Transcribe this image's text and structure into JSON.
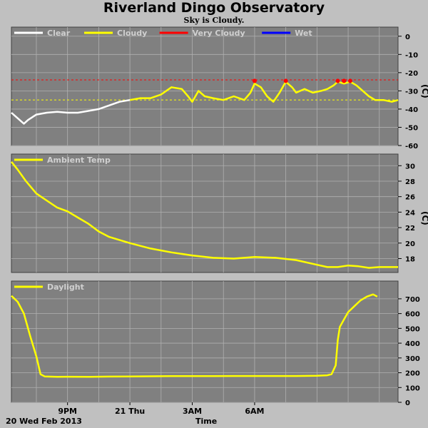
{
  "title": "Riverland Dingo Observatory",
  "subtitle": "Sky is Cloudy.",
  "footer": {
    "date": "20 Wed Feb 2013",
    "xlabel": "Time"
  },
  "colors": {
    "background": "#c0c0c0",
    "plot": "#808080",
    "clear": "#ffffff",
    "cloudy": "#ffff00",
    "very_cloudy": "#ff0000",
    "wet": "#0000ff"
  },
  "chart_data": [
    {
      "type": "line",
      "panel": "sky",
      "unit": "(C)",
      "legend": [
        {
          "name": "Clear",
          "color": "#ffffff"
        },
        {
          "name": "Cloudy",
          "color": "#ffff00"
        },
        {
          "name": "Very Cloudy",
          "color": "#ff0000"
        },
        {
          "name": "Wet",
          "color": "#0000ff"
        }
      ],
      "ylim": [
        -60,
        5
      ],
      "yticks": [
        0,
        -10,
        -20,
        -30,
        -40,
        -50,
        -60
      ],
      "thresholds": [
        {
          "value": -24,
          "color": "#ff0000"
        },
        {
          "value": -35,
          "color": "#ffff00"
        }
      ],
      "series": [
        {
          "name": "Clear",
          "color": "#ffffff",
          "points": [
            [
              18.3,
              -42
            ],
            [
              18.6,
              -45
            ],
            [
              18.9,
              -48
            ],
            [
              19.1,
              -46
            ],
            [
              19.5,
              -43
            ],
            [
              20,
              -42
            ],
            [
              20.5,
              -41.5
            ],
            [
              21,
              -42
            ],
            [
              21.5,
              -42
            ],
            [
              22,
              -41
            ],
            [
              22.5,
              -40
            ],
            [
              23,
              -38
            ],
            [
              23.5,
              -36
            ],
            [
              24,
              -35
            ]
          ]
        },
        {
          "name": "Cloudy",
          "color": "#ffff00",
          "points": [
            [
              24,
              -35
            ],
            [
              24.5,
              -34
            ],
            [
              25,
              -34
            ],
            [
              25.5,
              -32
            ],
            [
              26,
              -28
            ],
            [
              26.5,
              -29
            ],
            [
              26.8,
              -33
            ],
            [
              27,
              -36
            ],
            [
              27.3,
              -30
            ],
            [
              27.6,
              -33
            ],
            [
              28,
              -34
            ],
            [
              28.5,
              -35
            ],
            [
              29,
              -33
            ],
            [
              29.5,
              -35
            ],
            [
              29.8,
              -31
            ],
            [
              30,
              -26
            ],
            [
              30.3,
              -28
            ],
            [
              30.6,
              -33
            ],
            [
              30.9,
              -36
            ],
            [
              31.2,
              -31
            ],
            [
              31.5,
              -25
            ],
            [
              31.8,
              -28
            ],
            [
              32,
              -31
            ],
            [
              32.4,
              -29
            ],
            [
              32.8,
              -31
            ],
            [
              33.2,
              -30
            ],
            [
              33.5,
              -29
            ],
            [
              33.8,
              -27
            ],
            [
              34,
              -25
            ],
            [
              34.3,
              -26
            ],
            [
              34.6,
              -25
            ],
            [
              34.9,
              -27
            ],
            [
              35.2,
              -30
            ],
            [
              35.5,
              -33
            ],
            [
              35.8,
              -35
            ],
            [
              36.2,
              -35
            ],
            [
              36.6,
              -36
            ],
            [
              36.9,
              -35
            ]
          ]
        },
        {
          "name": "Very Cloudy",
          "color": "#ff0000",
          "points": [
            [
              30,
              -24.5
            ],
            [
              31.5,
              -24.5
            ],
            [
              34,
              -24.5
            ],
            [
              34.3,
              -24.5
            ],
            [
              34.6,
              -24.5
            ]
          ]
        }
      ]
    },
    {
      "type": "line",
      "panel": "ambient",
      "unit": "(C)",
      "legend": [
        {
          "name": "Ambient Temp",
          "color": "#ffff00"
        }
      ],
      "ylim": [
        16.2,
        31.5
      ],
      "yticks": [
        30,
        28,
        26,
        24,
        22,
        20,
        18
      ],
      "series": [
        {
          "name": "Ambient Temp",
          "color": "#ffff00",
          "points": [
            [
              18.3,
              30.5
            ],
            [
              18.6,
              29.5
            ],
            [
              19,
              28
            ],
            [
              19.5,
              26.4
            ],
            [
              20,
              25.5
            ],
            [
              20.5,
              24.6
            ],
            [
              21,
              24.1
            ],
            [
              21.5,
              23.3
            ],
            [
              22,
              22.5
            ],
            [
              22.5,
              21.5
            ],
            [
              23,
              20.8
            ],
            [
              23.5,
              20.4
            ],
            [
              24,
              20
            ],
            [
              25,
              19.3
            ],
            [
              26,
              18.8
            ],
            [
              27,
              18.4
            ],
            [
              28,
              18.1
            ],
            [
              29,
              18.0
            ],
            [
              30,
              18.2
            ],
            [
              31,
              18.1
            ],
            [
              32,
              17.8
            ],
            [
              33,
              17.2
            ],
            [
              33.5,
              16.9
            ],
            [
              34,
              16.9
            ],
            [
              34.5,
              17.1
            ],
            [
              35,
              17.0
            ],
            [
              35.5,
              16.8
            ],
            [
              36,
              16.9
            ],
            [
              36.9,
              16.9
            ]
          ]
        }
      ]
    },
    {
      "type": "line",
      "panel": "daylight",
      "unit": "",
      "legend": [
        {
          "name": "Daylight",
          "color": "#ffff00"
        }
      ],
      "ylim": [
        0,
        820
      ],
      "yticks": [
        700,
        600,
        500,
        400,
        300,
        200,
        100,
        0
      ],
      "series": [
        {
          "name": "Daylight",
          "color": "#ffff00",
          "points": [
            [
              18.3,
              720
            ],
            [
              18.6,
              680
            ],
            [
              18.9,
              600
            ],
            [
              19.2,
              450
            ],
            [
              19.5,
              310
            ],
            [
              19.7,
              190
            ],
            [
              19.9,
              175
            ],
            [
              20.5,
              172
            ],
            [
              21,
              173
            ],
            [
              22,
              172
            ],
            [
              23,
              174
            ],
            [
              24,
              175
            ],
            [
              25,
              176
            ],
            [
              26,
              177
            ],
            [
              27,
              177
            ],
            [
              28,
              177
            ],
            [
              29,
              178
            ],
            [
              30,
              178
            ],
            [
              31,
              178
            ],
            [
              32,
              178
            ],
            [
              33,
              180
            ],
            [
              33.5,
              183
            ],
            [
              33.7,
              190
            ],
            [
              33.9,
              250
            ],
            [
              34,
              420
            ],
            [
              34.1,
              510
            ],
            [
              34.3,
              560
            ],
            [
              34.5,
              610
            ],
            [
              34.8,
              650
            ],
            [
              35.1,
              690
            ],
            [
              35.4,
              715
            ],
            [
              35.7,
              730
            ],
            [
              35.9,
              715
            ]
          ]
        }
      ]
    }
  ],
  "x_axis": {
    "range": [
      18.3,
      36.9
    ],
    "ticks": [
      {
        "value": 21,
        "label": "9PM"
      },
      {
        "value": 24,
        "label": "21 Thu"
      },
      {
        "value": 27,
        "label": "3AM"
      },
      {
        "value": 30,
        "label": "6AM"
      }
    ],
    "grid": [
      19.5,
      21,
      22.5,
      24,
      25.5,
      27,
      28.5,
      30,
      31.5,
      33,
      34.5,
      36
    ]
  }
}
